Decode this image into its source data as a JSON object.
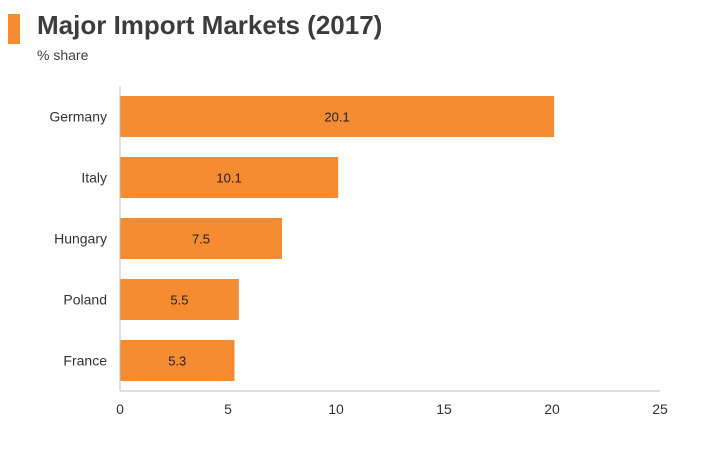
{
  "header": {
    "title": "Major Import Markets (2017)",
    "subtitle": "% share"
  },
  "colors": {
    "accent": "#f58c32",
    "bar": "#f58c32",
    "axis": "#bfbfbf"
  },
  "chart_data": {
    "type": "bar",
    "orientation": "horizontal",
    "title": "Major Import Markets (2017)",
    "subtitle": "% share",
    "categories": [
      "Germany",
      "Italy",
      "Hungary",
      "Poland",
      "France"
    ],
    "values": [
      20.1,
      10.1,
      7.5,
      5.5,
      5.3
    ],
    "value_labels": [
      "20.1",
      "10.1",
      "7.5",
      "5.5",
      "5.3"
    ],
    "xlim": [
      0,
      25
    ],
    "xticks": [
      0,
      5,
      10,
      15,
      20,
      25
    ],
    "xlabel": "",
    "ylabel": "",
    "grid": false,
    "legend": "none"
  }
}
